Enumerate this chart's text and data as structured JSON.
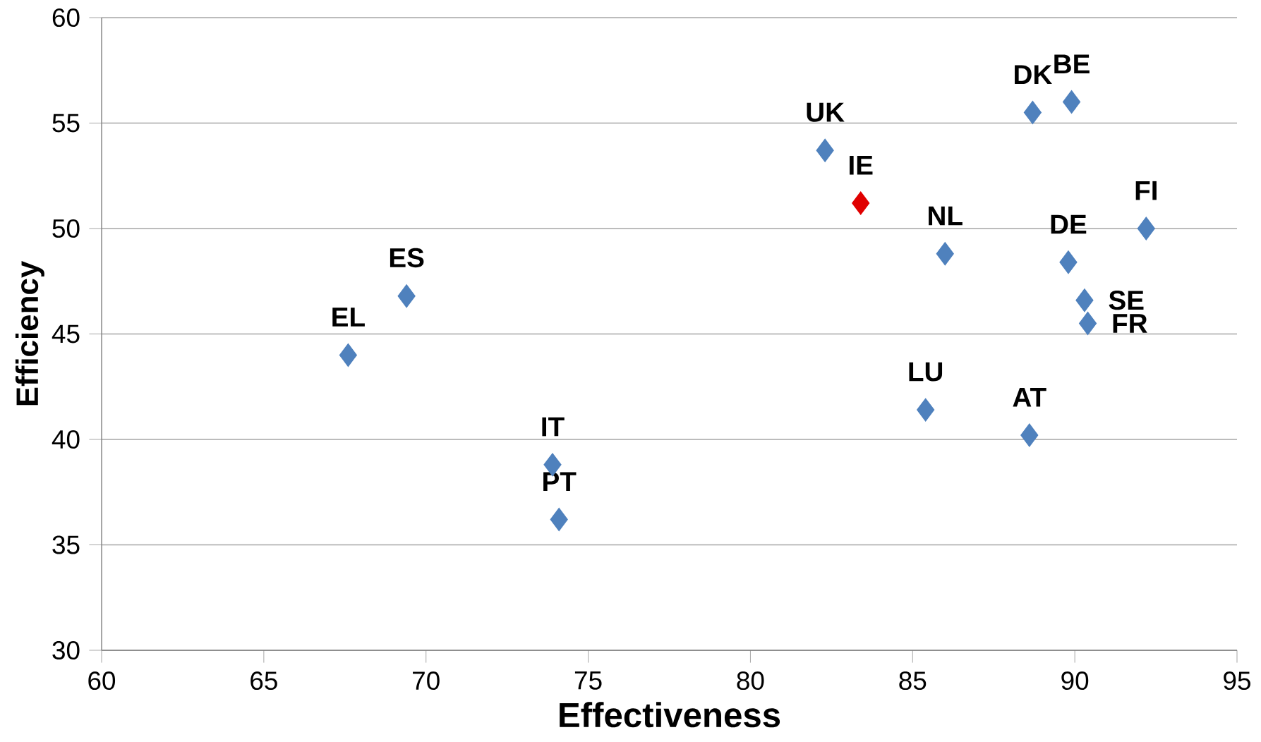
{
  "chart_data": {
    "type": "scatter",
    "xlabel": "Effectiveness",
    "ylabel": "Efficiency",
    "x": [
      67.6,
      69.4,
      73.9,
      74.1,
      82.3,
      83.4,
      86.0,
      85.4,
      88.7,
      89.9,
      88.6,
      89.8,
      90.3,
      90.4,
      92.2
    ],
    "values": [
      44.0,
      46.8,
      38.8,
      36.2,
      53.7,
      51.2,
      48.8,
      41.4,
      55.5,
      56.0,
      40.2,
      48.4,
      46.6,
      45.5,
      50.0
    ],
    "colors": [
      "#4f81bd",
      "#4f81bd",
      "#4f81bd",
      "#4f81bd",
      "#4f81bd",
      "#e00000",
      "#4f81bd",
      "#4f81bd",
      "#4f81bd",
      "#4f81bd",
      "#4f81bd",
      "#4f81bd",
      "#4f81bd",
      "#4f81bd",
      "#4f81bd"
    ],
    "annotations": [
      {
        "text": "EL",
        "x": 67.6,
        "y": 44.0
      },
      {
        "text": "ES",
        "x": 69.4,
        "y": 46.8
      },
      {
        "text": "IT",
        "x": 73.9,
        "y": 38.8
      },
      {
        "text": "PT",
        "x": 74.1,
        "y": 36.2
      },
      {
        "text": "UK",
        "x": 82.3,
        "y": 53.7
      },
      {
        "text": "IE",
        "x": 83.4,
        "y": 51.2
      },
      {
        "text": "NL",
        "x": 86.0,
        "y": 48.8
      },
      {
        "text": "LU",
        "x": 85.4,
        "y": 41.4
      },
      {
        "text": "DK",
        "x": 88.7,
        "y": 55.5
      },
      {
        "text": "BE",
        "x": 89.9,
        "y": 56.0
      },
      {
        "text": "AT",
        "x": 88.6,
        "y": 40.2
      },
      {
        "text": "DE",
        "x": 89.8,
        "y": 48.4
      },
      {
        "text": "SE",
        "x": 90.3,
        "y": 46.6
      },
      {
        "text": "FR",
        "x": 90.4,
        "y": 45.5
      },
      {
        "text": "FI",
        "x": 92.2,
        "y": 50.0
      }
    ],
    "xlim": [
      60,
      95
    ],
    "xticks": [
      60,
      65,
      70,
      75,
      80,
      85,
      90,
      95
    ],
    "ylim": [
      30,
      60
    ],
    "yticks": [
      30,
      35,
      40,
      45,
      50,
      55,
      60
    ],
    "grid": "y",
    "marker": "diamond"
  }
}
